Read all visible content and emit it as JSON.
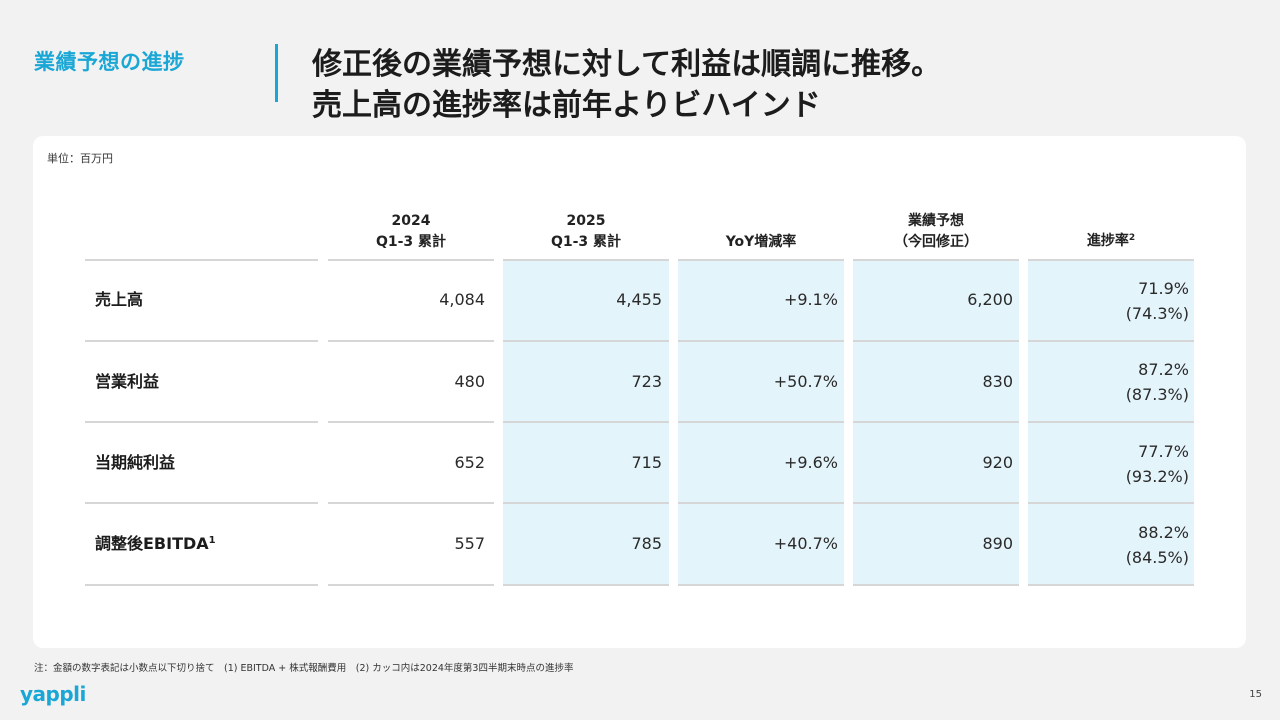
{
  "header": {
    "section_label": "業績予想の進捗",
    "headline_line1": "修正後の業績予想に対して利益は順調に推移。",
    "headline_line2": "売上高の進捗率は前年よりビハインド"
  },
  "unit_note": "単位：百万円",
  "table": {
    "columns": [
      {
        "line1": "2024",
        "line2": "Q1-3 累計"
      },
      {
        "line1": "2025",
        "line2": "Q1-3 累計"
      },
      {
        "line1": "YoY増減率",
        "line2": ""
      },
      {
        "line1": "業績予想",
        "line2": "（今回修正）"
      },
      {
        "line1": "進捗率",
        "line2": "",
        "sup": "2"
      }
    ],
    "rows": [
      {
        "label": "売上高",
        "sup": "",
        "v2024": "4,084",
        "v2025": "4,455",
        "yoy": "+9.1%",
        "forecast": "6,200",
        "progress": "71.9%",
        "progress_prev": "(74.3%)"
      },
      {
        "label": "営業利益",
        "sup": "",
        "v2024": "480",
        "v2025": "723",
        "yoy": "+50.7%",
        "forecast": "830",
        "progress": "87.2%",
        "progress_prev": "(87.3%)"
      },
      {
        "label": "当期純利益",
        "sup": "",
        "v2024": "652",
        "v2025": "715",
        "yoy": "+9.6%",
        "forecast": "920",
        "progress": "77.7%",
        "progress_prev": "(93.2%)"
      },
      {
        "label": "調整後EBITDA",
        "sup": "1",
        "v2024": "557",
        "v2025": "785",
        "yoy": "+40.7%",
        "forecast": "890",
        "progress": "88.2%",
        "progress_prev": "(84.5%)"
      }
    ]
  },
  "footnote": "注：金額の数字表記は小数点以下切り捨て　(1) EBITDA + 株式報酬費用　(2) カッコ内は2024年度第3四半期末時点の進捗率",
  "logo_text": "yappli",
  "page_number": "15",
  "colors": {
    "accent": "#1aa7d6",
    "highlight": "#e4f4fb"
  }
}
